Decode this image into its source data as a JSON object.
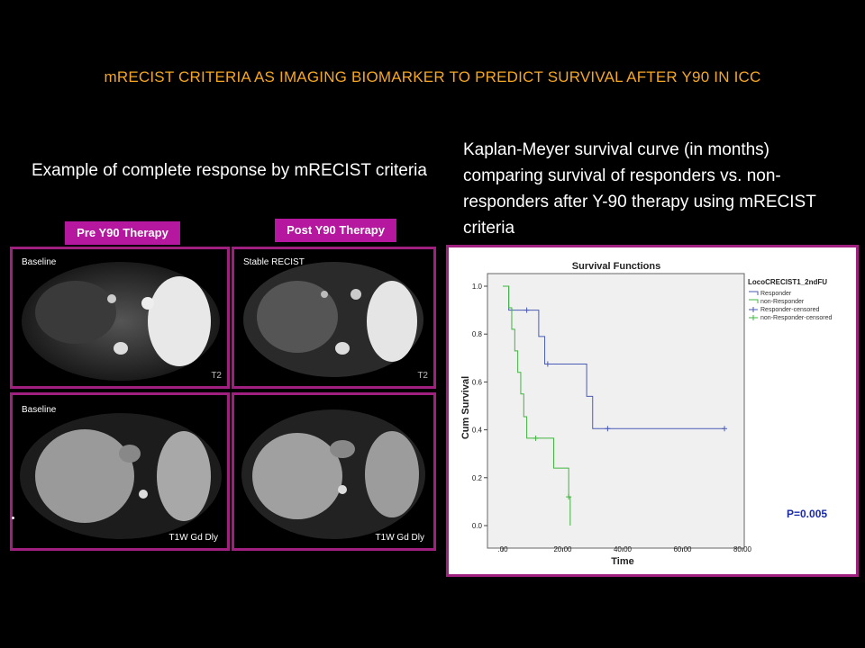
{
  "slide": {
    "title": "mRECIST CRITERIA AS IMAGING BIOMARKER TO PREDICT SURVIVAL AFTER Y90 IN ICC",
    "left_caption": "Example of complete response by mRECIST criteria",
    "right_caption": "Kaplan-Meyer survival curve (in months) comparing survival of responders vs. non-responders after Y-90 therapy using mRECIST criteria",
    "tag_pre": "Pre Y90 Therapy",
    "tag_post": "Post Y90 Therapy",
    "panels": {
      "top_left_label": "Baseline",
      "top_left_corner": "T2",
      "top_right_label": "Stable RECIST",
      "top_right_corner": "T2",
      "bottom_left_label": "Baseline",
      "bottom_left_caption": "T1W Gd Dly",
      "bottom_right_caption": "T1W Gd Dly"
    },
    "colors": {
      "title": "#f5a623",
      "frame": "#a0207f",
      "tag": "#b5179e",
      "responder": "#4a5bb5",
      "non_responder": "#3fb53f",
      "pvalue": "#1a2aa8"
    }
  },
  "chart_data": {
    "type": "line",
    "title": "Survival Functions",
    "xlabel": "Time",
    "ylabel": "Cum Survival",
    "xlim": [
      0,
      80
    ],
    "ylim": [
      0,
      1
    ],
    "xticks": [
      ".00",
      "20.00",
      "40.00",
      "60.00",
      "80.00"
    ],
    "xtick_values": [
      0,
      20,
      40,
      60,
      80
    ],
    "yticks": [
      "0.0",
      "0.2",
      "0.4",
      "0.6",
      "0.8",
      "1.0"
    ],
    "ytick_values": [
      0,
      0.2,
      0.4,
      0.6,
      0.8,
      1.0
    ],
    "legend_title": "LocoCRECIST1_2ndFU",
    "legend_position": "top-right",
    "legend": [
      "Responder",
      "non-Responder",
      "Responder-censored",
      "non-Responder-censored"
    ],
    "series": [
      {
        "name": "Responder",
        "steps": [
          [
            0,
            1.0
          ],
          [
            2,
            0.9
          ],
          [
            12,
            0.79
          ],
          [
            14,
            0.675
          ],
          [
            28,
            0.54
          ],
          [
            30,
            0.405
          ],
          [
            74,
            0.405
          ]
        ],
        "censored": [
          [
            8,
            0.9
          ],
          [
            15,
            0.675
          ],
          [
            35,
            0.405
          ],
          [
            74,
            0.405
          ]
        ]
      },
      {
        "name": "non-Responder",
        "steps": [
          [
            0,
            1.0
          ],
          [
            2,
            0.91
          ],
          [
            3,
            0.82
          ],
          [
            4,
            0.73
          ],
          [
            5,
            0.64
          ],
          [
            6,
            0.55
          ],
          [
            7,
            0.455
          ],
          [
            8,
            0.365
          ],
          [
            17,
            0.24
          ],
          [
            22,
            0.12
          ],
          [
            22.5,
            0.0
          ]
        ],
        "censored": [
          [
            11,
            0.365
          ],
          [
            22,
            0.12
          ]
        ]
      }
    ],
    "annotation": "P=0.005"
  }
}
